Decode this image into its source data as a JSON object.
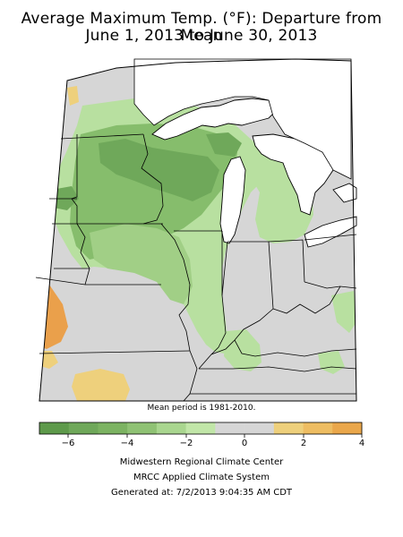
{
  "title": {
    "line1": "Average Maximum Temp. (°F): Departure from Mean",
    "line2": "June 1, 2013 to June 30, 2013"
  },
  "map": {
    "note": "Mean period is 1981-2010.",
    "land_color": "#d6d6d6",
    "water_color": "#ffffff",
    "border_color": "#000000",
    "anomaly_colors": {
      "minus_4_to_6": "#5e9a4b",
      "minus_2_to_4": "#86bd6c",
      "zero_to_minus_2": "#b8e0a0",
      "zero": "#d6d6d6",
      "zero_to_2": "#eed07c",
      "two_to_4": "#eaa04b"
    }
  },
  "legend": {
    "tick_labels": [
      "−6",
      "−4",
      "−2",
      "0",
      "2",
      "4"
    ],
    "colors": [
      "#5e9a4b",
      "#6fa85a",
      "#7cb362",
      "#8fc274",
      "#a9d68f",
      "#c1e6a8",
      "#d6d6d6",
      "#d6d6d6",
      "#eed07c",
      "#eebd62",
      "#eaa74b"
    ]
  },
  "credits": {
    "line1": "Midwestern Regional Climate Center",
    "line2": "MRCC Applied Climate System",
    "line3": "Generated at: 7/2/2013 9:04:35 AM CDT"
  }
}
